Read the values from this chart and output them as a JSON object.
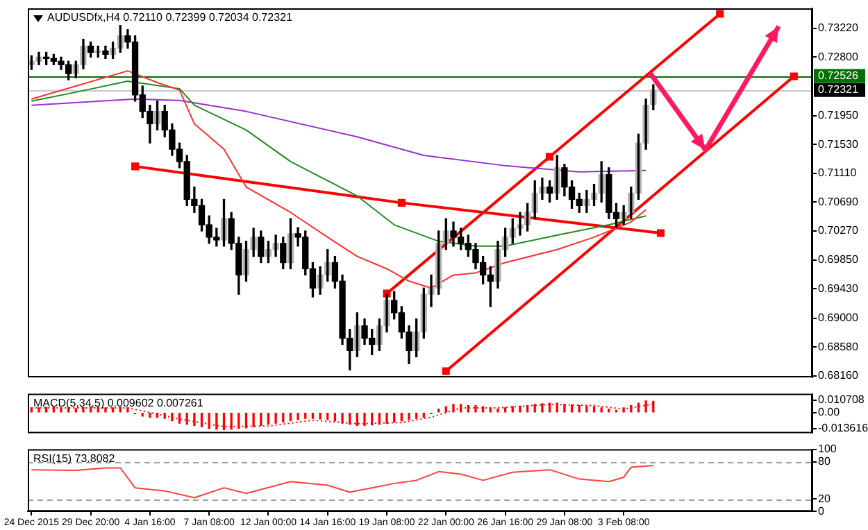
{
  "chart_data": [
    {
      "type": "candlestick",
      "title": "AUDUSDfx,H4 0.72110 0.72399 0.72034 0.72321",
      "categories": [
        null,
        null,
        null,
        null,
        null,
        null,
        null,
        null,
        null,
        null,
        null,
        null,
        null,
        null,
        null,
        null,
        null,
        null,
        null,
        null,
        null,
        null,
        null,
        null,
        null,
        null,
        null,
        null,
        null,
        null,
        null,
        null,
        null,
        null,
        null,
        null,
        null,
        null,
        null,
        null,
        null,
        null,
        null,
        null,
        null,
        null,
        null,
        null,
        null,
        null,
        null,
        null,
        null,
        null,
        null,
        null,
        null,
        null,
        null,
        null,
        null,
        null,
        null,
        null,
        null,
        null,
        null,
        null,
        null,
        null,
        null,
        null,
        null,
        null,
        null,
        null,
        null,
        null,
        null,
        null,
        null,
        null,
        null,
        null,
        null,
        null,
        null,
        null,
        null,
        null,
        null,
        null,
        null,
        null,
        null,
        null,
        null,
        null,
        null,
        null,
        null,
        null,
        null,
        null,
        null,
        null
      ],
      "ohlc": [
        [
          0.7269,
          0.7282,
          0.7262,
          0.7274
        ],
        [
          0.7274,
          0.7287,
          0.7269,
          0.728
        ],
        [
          0.728,
          0.7287,
          0.7269,
          0.7278
        ],
        [
          0.7278,
          0.7284,
          0.7269,
          0.7274
        ],
        [
          0.7274,
          0.728,
          0.7262,
          0.7269
        ],
        [
          0.7269,
          0.7274,
          0.7247,
          0.7256
        ],
        [
          0.7256,
          0.7274,
          0.725,
          0.7269
        ],
        [
          0.7269,
          0.7306,
          0.7263,
          0.7296
        ],
        [
          0.7296,
          0.7302,
          0.728,
          0.7287
        ],
        [
          0.7287,
          0.7296,
          0.728,
          0.7289
        ],
        [
          0.7289,
          0.7296,
          0.7278,
          0.7284
        ],
        [
          0.7284,
          0.7302,
          0.7278,
          0.7293
        ],
        [
          0.7293,
          0.7326,
          0.7287,
          0.7311
        ],
        [
          0.7311,
          0.732,
          0.7293,
          0.7302
        ],
        [
          0.7302,
          0.7311,
          0.7216,
          0.7225
        ],
        [
          0.7225,
          0.7238,
          0.7192,
          0.7201
        ],
        [
          0.7201,
          0.721,
          0.7155,
          0.7183
        ],
        [
          0.7183,
          0.7216,
          0.7174,
          0.7201
        ],
        [
          0.7201,
          0.721,
          0.7164,
          0.7174
        ],
        [
          0.7174,
          0.7183,
          0.7137,
          0.7146
        ],
        [
          0.7146,
          0.7155,
          0.7119,
          0.7128
        ],
        [
          0.7128,
          0.7137,
          0.7064,
          0.7073
        ],
        [
          0.7073,
          0.7091,
          0.7054,
          0.7064
        ],
        [
          0.7064,
          0.7073,
          0.7027,
          0.7036
        ],
        [
          0.7036,
          0.7049,
          0.7009,
          0.7018
        ],
        [
          0.7018,
          0.7031,
          0.7005,
          0.7014
        ],
        [
          0.7014,
          0.7073,
          0.7005,
          0.7045
        ],
        [
          0.7045,
          0.7054,
          0.7,
          0.7009
        ],
        [
          0.7009,
          0.7018,
          0.6935,
          0.6963
        ],
        [
          0.6963,
          0.7012,
          0.6954,
          0.7
        ],
        [
          0.7,
          0.7031,
          0.699,
          0.7018
        ],
        [
          0.7018,
          0.7027,
          0.6981,
          0.699
        ],
        [
          0.699,
          0.7012,
          0.6981,
          0.7
        ],
        [
          0.7,
          0.7021,
          0.699,
          0.7009
        ],
        [
          0.7009,
          0.7018,
          0.6972,
          0.6981
        ],
        [
          0.6981,
          0.7045,
          0.6972,
          0.7023
        ],
        [
          0.7023,
          0.7032,
          0.7005,
          0.7018
        ],
        [
          0.7018,
          0.7027,
          0.6963,
          0.6972
        ],
        [
          0.6972,
          0.6981,
          0.6931,
          0.6944
        ],
        [
          0.6944,
          0.6975,
          0.6935,
          0.6963
        ],
        [
          0.6963,
          0.7,
          0.6954,
          0.6981
        ],
        [
          0.6981,
          0.699,
          0.6944,
          0.6954
        ],
        [
          0.6954,
          0.6963,
          0.6862,
          0.6871
        ],
        [
          0.6871,
          0.6884,
          0.6825,
          0.6853
        ],
        [
          0.6853,
          0.6908,
          0.6844,
          0.6889
        ],
        [
          0.6889,
          0.6899,
          0.6862,
          0.6871
        ],
        [
          0.6871,
          0.6884,
          0.6847,
          0.6862
        ],
        [
          0.6862,
          0.6899,
          0.6853,
          0.6889
        ],
        [
          0.6889,
          0.6935,
          0.688,
          0.6926
        ],
        [
          0.6926,
          0.6939,
          0.6899,
          0.6908
        ],
        [
          0.6908,
          0.6917,
          0.6871,
          0.688
        ],
        [
          0.688,
          0.6889,
          0.6834,
          0.6853
        ],
        [
          0.6853,
          0.6899,
          0.6844,
          0.688
        ],
        [
          0.688,
          0.6944,
          0.6871,
          0.6935
        ],
        [
          0.6935,
          0.6963,
          0.6917,
          0.6944
        ],
        [
          0.6944,
          0.7027,
          0.6935,
          0.7009
        ],
        [
          0.7009,
          0.7045,
          0.7,
          0.7027
        ],
        [
          0.7027,
          0.704,
          0.7005,
          0.7018
        ],
        [
          0.7018,
          0.7031,
          0.7,
          0.7009
        ],
        [
          0.7009,
          0.7021,
          0.699,
          0.7
        ],
        [
          0.7,
          0.7009,
          0.6972,
          0.6981
        ],
        [
          0.6981,
          0.699,
          0.695,
          0.6963
        ],
        [
          0.6963,
          0.6975,
          0.6917,
          0.6954
        ],
        [
          0.6954,
          0.7012,
          0.6944,
          0.7
        ],
        [
          0.7,
          0.7031,
          0.699,
          0.7018
        ],
        [
          0.7018,
          0.7045,
          0.7009,
          0.7031
        ],
        [
          0.7031,
          0.7054,
          0.7021,
          0.7036
        ],
        [
          0.7036,
          0.7067,
          0.7027,
          0.7054
        ],
        [
          0.7054,
          0.71,
          0.7045,
          0.7082
        ],
        [
          0.7082,
          0.7104,
          0.7073,
          0.7091
        ],
        [
          0.7091,
          0.71,
          0.7069,
          0.7082
        ],
        [
          0.7082,
          0.7137,
          0.7073,
          0.7119
        ],
        [
          0.7119,
          0.7124,
          0.7078,
          0.7091
        ],
        [
          0.7091,
          0.71,
          0.706,
          0.7073
        ],
        [
          0.7073,
          0.7082,
          0.7054,
          0.7064
        ],
        [
          0.7064,
          0.7086,
          0.7054,
          0.7073
        ],
        [
          0.7073,
          0.7095,
          0.7064,
          0.7082
        ],
        [
          0.7082,
          0.7128,
          0.7069,
          0.7109
        ],
        [
          0.7109,
          0.7119,
          0.7045,
          0.7054
        ],
        [
          0.7054,
          0.7067,
          0.7032,
          0.7045
        ],
        [
          0.7045,
          0.7064,
          0.7036,
          0.7054
        ],
        [
          0.7054,
          0.7091,
          0.7045,
          0.7082
        ],
        [
          0.7082,
          0.7168,
          0.7073,
          0.7155
        ],
        [
          0.7155,
          0.7219,
          0.7146,
          0.721
        ],
        [
          0.7211,
          0.72399,
          0.72034,
          0.72321
        ],
        null,
        null,
        null,
        null,
        null,
        null,
        null,
        null,
        null,
        null,
        null,
        null,
        null,
        null,
        null,
        null,
        null,
        null,
        null,
        null,
        null
      ],
      "series": [
        {
          "type": "line",
          "color": "#ff3030",
          "values": [
            0.7219,
            null,
            null,
            null,
            null,
            null,
            0.7238,
            null,
            null,
            null,
            null,
            null,
            null,
            0.726,
            null,
            null,
            null,
            0.7243,
            null,
            null,
            0.7232,
            null,
            0.7183,
            null,
            null,
            null,
            0.7146,
            null,
            null,
            0.7091,
            null,
            null,
            null,
            null,
            null,
            0.7054,
            null,
            null,
            null,
            null,
            0.7018,
            null,
            null,
            null,
            0.699,
            null,
            null,
            null,
            0.6972,
            null,
            null,
            0.6954,
            null,
            null,
            0.6944,
            null,
            null,
            0.6963,
            null,
            null,
            0.6966,
            null,
            null,
            null,
            0.6981,
            null,
            null,
            null,
            null,
            null,
            null,
            0.7,
            null,
            null,
            null,
            null,
            0.7018,
            null,
            null,
            null,
            null,
            0.704,
            null,
            0.7058,
            null,
            null,
            null,
            null,
            null,
            null,
            null,
            null,
            null,
            null,
            null,
            null,
            null,
            null,
            null,
            null,
            null,
            null,
            null,
            null,
            null,
            null
          ]
        },
        {
          "type": "line",
          "color": "#228b22",
          "values": [
            0.7216,
            null,
            null,
            null,
            null,
            null,
            0.7229,
            null,
            null,
            null,
            null,
            null,
            null,
            0.7245,
            null,
            null,
            null,
            null,
            null,
            null,
            0.7234,
            null,
            0.721,
            null,
            null,
            null,
            null,
            null,
            null,
            0.7174,
            null,
            null,
            null,
            null,
            null,
            0.7128,
            null,
            null,
            null,
            null,
            null,
            null,
            null,
            null,
            0.7078,
            null,
            null,
            null,
            null,
            0.7036,
            null,
            null,
            null,
            null,
            null,
            0.7012,
            null,
            null,
            null,
            null,
            0.7005,
            null,
            null,
            null,
            0.7005,
            null,
            null,
            null,
            null,
            null,
            null,
            0.7021,
            null,
            null,
            null,
            null,
            null,
            null,
            0.7036,
            null,
            null,
            null,
            null,
            0.7049,
            null,
            null,
            null,
            null,
            null,
            null,
            null,
            null,
            null,
            null,
            null,
            null,
            null,
            null,
            null,
            null,
            null,
            null,
            null,
            null,
            null,
            null
          ]
        },
        {
          "type": "line",
          "color": "#9932cc",
          "values": [
            0.721,
            null,
            null,
            null,
            null,
            null,
            null,
            null,
            null,
            null,
            null,
            null,
            null,
            null,
            0.7219,
            null,
            null,
            null,
            null,
            null,
            0.7217,
            null,
            null,
            null,
            null,
            null,
            null,
            null,
            null,
            0.7201,
            null,
            null,
            null,
            null,
            null,
            null,
            null,
            null,
            null,
            null,
            null,
            null,
            null,
            null,
            0.7164,
            null,
            null,
            null,
            null,
            null,
            null,
            null,
            null,
            0.7137,
            null,
            null,
            null,
            null,
            null,
            null,
            null,
            null,
            null,
            null,
            0.7122,
            null,
            null,
            null,
            null,
            null,
            null,
            null,
            null,
            null,
            0.7113,
            null,
            null,
            null,
            null,
            null,
            null,
            null,
            null,
            0.7115,
            null,
            null,
            null,
            null,
            null,
            null,
            null,
            null,
            null,
            null,
            null,
            null,
            null,
            null,
            null,
            null,
            null,
            null,
            null,
            null,
            null,
            null
          ]
        },
        {
          "type": "line",
          "color": "#ff0000",
          "marker": "square",
          "values": [
            null,
            null,
            null,
            null,
            null,
            null,
            null,
            null,
            null,
            null,
            null,
            null,
            null,
            null,
            0.7121,
            null,
            null,
            null,
            null,
            null,
            null,
            null,
            null,
            null,
            null,
            null,
            null,
            null,
            null,
            null,
            null,
            null,
            null,
            null,
            null,
            null,
            null,
            null,
            null,
            null,
            null,
            null,
            null,
            null,
            null,
            null,
            null,
            null,
            null,
            null,
            0.7068,
            null,
            null,
            null,
            null,
            null,
            null,
            null,
            null,
            null,
            null,
            null,
            null,
            null,
            null,
            null,
            null,
            null,
            null,
            null,
            null,
            null,
            null,
            null,
            null,
            null,
            null,
            null,
            null,
            null,
            null,
            null,
            null,
            null,
            null,
            0.7024,
            null,
            null,
            null,
            null,
            null,
            null,
            null,
            null,
            null,
            null,
            null,
            null,
            null,
            null,
            null,
            null,
            null,
            null,
            null,
            null
          ]
        },
        {
          "type": "line",
          "color": "#ff0000",
          "marker": "square",
          "values": [
            null,
            null,
            null,
            null,
            null,
            null,
            null,
            null,
            null,
            null,
            null,
            null,
            null,
            null,
            null,
            null,
            null,
            null,
            null,
            null,
            null,
            null,
            null,
            null,
            null,
            null,
            null,
            null,
            null,
            null,
            null,
            null,
            null,
            null,
            null,
            null,
            null,
            null,
            null,
            null,
            null,
            null,
            null,
            null,
            null,
            null,
            null,
            null,
            0.6936,
            null,
            null,
            null,
            null,
            null,
            null,
            null,
            null,
            null,
            null,
            null,
            null,
            null,
            null,
            null,
            null,
            null,
            null,
            null,
            null,
            null,
            0.7135,
            null,
            null,
            null,
            null,
            null,
            null,
            null,
            null,
            null,
            null,
            null,
            null,
            null,
            null,
            null,
            null,
            null,
            null,
            null,
            null,
            null,
            null,
            0.7343,
            null,
            null,
            null,
            null,
            null,
            null,
            null,
            null,
            null,
            null,
            null,
            null
          ]
        },
        {
          "type": "line",
          "color": "#ff0000",
          "marker": "square",
          "values": [
            null,
            null,
            null,
            null,
            null,
            null,
            null,
            null,
            null,
            null,
            null,
            null,
            null,
            null,
            null,
            null,
            null,
            null,
            null,
            null,
            null,
            null,
            null,
            null,
            null,
            null,
            null,
            null,
            null,
            null,
            null,
            null,
            null,
            null,
            null,
            null,
            null,
            null,
            null,
            null,
            null,
            null,
            null,
            null,
            null,
            null,
            null,
            null,
            null,
            null,
            null,
            null,
            null,
            null,
            null,
            null,
            0.6823,
            null,
            null,
            null,
            null,
            null,
            null,
            null,
            null,
            null,
            null,
            null,
            null,
            null,
            null,
            null,
            null,
            null,
            null,
            null,
            null,
            null,
            null,
            null,
            null,
            null,
            null,
            null,
            null,
            null,
            null,
            null,
            null,
            null,
            null,
            null,
            null,
            null,
            null,
            null,
            null,
            null,
            null,
            null,
            null,
            null,
            null,
            0.7252,
            null,
            null
          ]
        }
      ],
      "ylim": [
        0.6814,
        0.7351
      ],
      "yticks": [
        {
          "value": 0.7322,
          "label": "0.73220"
        },
        {
          "value": 0.728,
          "label": "0.72800"
        },
        {
          "value": 0.7195,
          "label": "0.71950"
        },
        {
          "value": 0.7153,
          "label": "0.71530"
        },
        {
          "value": 0.7111,
          "label": "0.71110"
        },
        {
          "value": 0.7069,
          "label": "0.70690"
        },
        {
          "value": 0.7027,
          "label": "0.70270"
        },
        {
          "value": 0.6985,
          "label": "0.69850"
        },
        {
          "value": 0.6943,
          "label": "0.69430"
        },
        {
          "value": 0.69,
          "label": "0.69000"
        },
        {
          "value": 0.6858,
          "label": "0.68580"
        },
        {
          "value": 0.6816,
          "label": "0.68160"
        }
      ],
      "ref_lines": [
        {
          "axis": "y",
          "value": 0.72526,
          "label": "0.72526",
          "color": "#007000"
        },
        {
          "axis": "y",
          "value": 0.72321,
          "label": "0.72321",
          "color": "#c8c8c8"
        }
      ],
      "tick_labels": "y"
    },
    {
      "type": "bar",
      "title": "MACD(5,34,5) 0.009602 0.007261",
      "categories": [
        null,
        null,
        null,
        null,
        null,
        null,
        null,
        null,
        null,
        null,
        null,
        null,
        null,
        null,
        null,
        null,
        null,
        null,
        null,
        null,
        null,
        null,
        null,
        null,
        null,
        null,
        null,
        null,
        null,
        null,
        null,
        null,
        null,
        null,
        null,
        null,
        null,
        null,
        null,
        null,
        null,
        null,
        null,
        null,
        null,
        null,
        null,
        null,
        null,
        null,
        null,
        null,
        null,
        null,
        null,
        null,
        null,
        null,
        null,
        null,
        null,
        null,
        null,
        null,
        null,
        null,
        null,
        null,
        null,
        null,
        null,
        null,
        null,
        null,
        null,
        null,
        null,
        null,
        null,
        null,
        null,
        null,
        null,
        null,
        null,
        null,
        null,
        null,
        null,
        null,
        null,
        null,
        null,
        null,
        null,
        null,
        null,
        null,
        null,
        null,
        null,
        null,
        null,
        null,
        null,
        null
      ],
      "series": [
        {
          "type": "bar",
          "color": "#ff0000",
          "values": [
            0.004,
            0.004,
            0.0045,
            0.0045,
            0.004,
            0.0035,
            0.0035,
            0.0045,
            0.005,
            0.0045,
            0.004,
            0.004,
            0.0045,
            0.004,
            -0.001,
            -0.003,
            -0.004,
            -0.004,
            -0.005,
            -0.007,
            -0.009,
            -0.01,
            -0.011,
            -0.012,
            -0.0135,
            -0.014,
            -0.0145,
            -0.014,
            -0.0135,
            -0.013,
            -0.012,
            -0.011,
            -0.01,
            -0.009,
            -0.008,
            -0.007,
            -0.006,
            -0.005,
            -0.005,
            -0.0055,
            -0.006,
            -0.007,
            -0.009,
            -0.01,
            -0.011,
            -0.011,
            -0.0105,
            -0.01,
            -0.009,
            -0.008,
            -0.007,
            -0.006,
            -0.005,
            -0.004,
            -0.001,
            0.003,
            0.005,
            0.007,
            0.007,
            0.006,
            0.006,
            0.005,
            0.004,
            0.003,
            0.004,
            0.005,
            0.0055,
            0.006,
            0.007,
            0.0075,
            0.008,
            0.008,
            0.007,
            0.0065,
            0.006,
            0.0055,
            0.005,
            0.004,
            0.003,
            0.002,
            0.004,
            0.006,
            0.008,
            0.0099,
            0.009602,
            null,
            null,
            null,
            null,
            null,
            null,
            null,
            null,
            null,
            null,
            null,
            null,
            null,
            null,
            null,
            null,
            null,
            null,
            null,
            null,
            null
          ]
        },
        {
          "type": "line",
          "color": "#ff0000",
          "line_style": "dotted",
          "values": [
            0.004,
            null,
            null,
            null,
            null,
            null,
            null,
            null,
            null,
            null,
            null,
            null,
            null,
            0.004,
            null,
            null,
            0.0,
            null,
            null,
            null,
            -0.0055,
            null,
            null,
            null,
            null,
            null,
            -0.012,
            null,
            null,
            null,
            null,
            null,
            -0.0115,
            null,
            null,
            null,
            null,
            null,
            -0.0065,
            null,
            null,
            null,
            null,
            null,
            -0.0095,
            null,
            null,
            null,
            null,
            null,
            -0.0085,
            null,
            null,
            null,
            -0.004,
            null,
            null,
            null,
            0.004,
            null,
            null,
            null,
            null,
            0.004,
            null,
            null,
            null,
            null,
            null,
            null,
            0.007,
            null,
            null,
            null,
            null,
            null,
            0.006,
            null,
            null,
            null,
            0.003,
            null,
            null,
            null,
            0.007261,
            null,
            null,
            null,
            null,
            null,
            null,
            null,
            null,
            null,
            null,
            null,
            null,
            null,
            null,
            null,
            null,
            null,
            null,
            null,
            null,
            null
          ]
        }
      ],
      "ylim": [
        -0.0175,
        0.016
      ],
      "yticks": [
        {
          "value": 0.010708,
          "label": "0.010708"
        },
        {
          "value": 0,
          "label": "0.00"
        },
        {
          "value": -0.013616,
          "label": "-0.013616"
        }
      ],
      "tick_labels": "y"
    },
    {
      "type": "line",
      "title": "RSI(15) 73.8082",
      "categories": [
        "24 Dec 2015",
        null,
        null,
        null,
        null,
        null,
        null,
        null,
        "29 Dec 20:00",
        null,
        null,
        null,
        null,
        null,
        null,
        null,
        "4 Jan 16:00",
        null,
        null,
        null,
        null,
        null,
        null,
        null,
        "7 Jan 08:00",
        null,
        null,
        null,
        null,
        null,
        null,
        null,
        "12 Jan 00:00",
        null,
        null,
        null,
        null,
        null,
        null,
        null,
        "14 Jan 16:00",
        null,
        null,
        null,
        null,
        null,
        null,
        null,
        "19 Jan 08:00",
        null,
        null,
        null,
        null,
        null,
        null,
        null,
        "22 Jan 00:00",
        null,
        null,
        null,
        null,
        null,
        null,
        null,
        "26 Jan 16:00",
        null,
        null,
        null,
        null,
        null,
        null,
        null,
        "29 Jan 08:00",
        null,
        null,
        null,
        null,
        null,
        null,
        null,
        "3 Feb 08:00",
        null,
        null,
        null,
        null,
        null,
        null,
        null,
        null,
        null,
        null,
        null,
        null,
        null,
        null,
        null,
        null,
        null,
        null,
        null,
        null,
        null,
        null,
        null,
        null,
        null
      ],
      "series": [
        {
          "color": "#ff4040",
          "values": [
            67,
            null,
            null,
            null,
            null,
            null,
            66,
            null,
            null,
            null,
            70,
            null,
            70,
            null,
            38,
            null,
            null,
            null,
            33,
            null,
            null,
            null,
            22,
            null,
            null,
            null,
            38,
            null,
            null,
            29,
            null,
            null,
            null,
            null,
            null,
            48,
            null,
            null,
            null,
            null,
            42,
            null,
            null,
            31,
            null,
            null,
            38,
            null,
            null,
            45,
            null,
            null,
            50,
            null,
            null,
            64,
            null,
            null,
            60,
            null,
            null,
            50,
            null,
            null,
            null,
            63,
            null,
            null,
            null,
            null,
            67,
            null,
            null,
            null,
            52,
            null,
            null,
            null,
            48,
            null,
            55,
            71,
            null,
            null,
            73.8082,
            null,
            null,
            null,
            null,
            null,
            null,
            null,
            null,
            null,
            null,
            null,
            null,
            null,
            null,
            null,
            null,
            null,
            null,
            null,
            null,
            null
          ]
        }
      ],
      "ylim": [
        0,
        100
      ],
      "yticks": [
        0,
        20,
        80,
        100
      ],
      "ref_lines": [
        {
          "axis": "y",
          "value": 20,
          "color": "#a0a0a0",
          "line_style": "dashed"
        },
        {
          "axis": "y",
          "value": 80,
          "color": "#a0a0a0",
          "line_style": "dashed"
        }
      ]
    }
  ]
}
